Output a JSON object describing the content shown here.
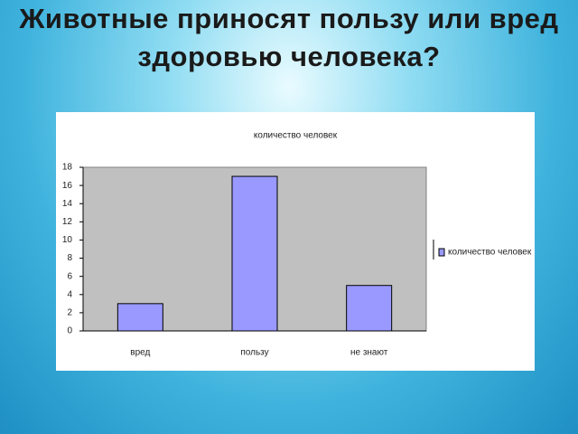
{
  "slide_title": "Животные приносят пользу или вред здоровью человека?",
  "chart_data": {
    "type": "bar",
    "title": "количество человек",
    "categories": [
      "вред",
      "пользу",
      "не знают"
    ],
    "series": [
      {
        "name": "количество человек",
        "color": "#9999ff",
        "values": [
          3,
          17,
          5
        ]
      }
    ],
    "ylim": [
      0,
      18
    ],
    "yticks": [
      0,
      2,
      4,
      6,
      8,
      10,
      12,
      14,
      16,
      18
    ],
    "legend": "right"
  }
}
